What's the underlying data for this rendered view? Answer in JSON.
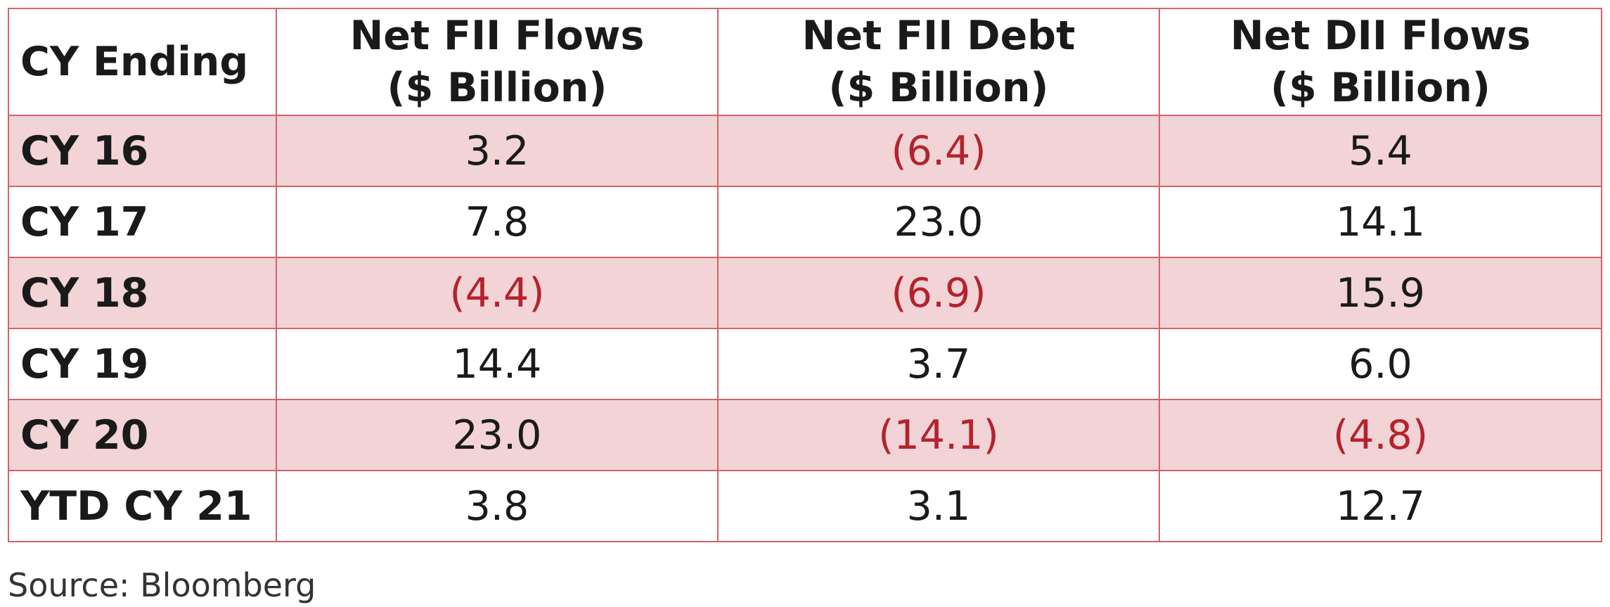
{
  "table": {
    "headers": [
      {
        "line1": "CY Ending",
        "line2": ""
      },
      {
        "line1": "Net FII Flows",
        "line2": "($ Billion)"
      },
      {
        "line1": "Net FII Debt",
        "line2": "($ Billion)"
      },
      {
        "line1": "Net DII Flows",
        "line2": "($ Billion)"
      }
    ],
    "rows": [
      {
        "label": "CY 16",
        "cells": [
          "3.2",
          "(6.4)",
          "5.4"
        ]
      },
      {
        "label": "CY 17",
        "cells": [
          "7.8",
          "23.0",
          "14.1"
        ]
      },
      {
        "label": "CY 18",
        "cells": [
          "(4.4)",
          "(6.9)",
          "15.9"
        ]
      },
      {
        "label": "CY 19",
        "cells": [
          "14.4",
          "3.7",
          "6.0"
        ]
      },
      {
        "label": "CY 20",
        "cells": [
          "23.0",
          "(14.1)",
          "(4.8)"
        ]
      },
      {
        "label": "YTD CY 21",
        "cells": [
          "3.8",
          "3.1",
          "12.7"
        ]
      }
    ]
  },
  "source": "Source: Bloomberg",
  "colors": {
    "border": "#d4626a",
    "shaded_row": "#f2d3d6",
    "negative_text": "#b3232e"
  }
}
